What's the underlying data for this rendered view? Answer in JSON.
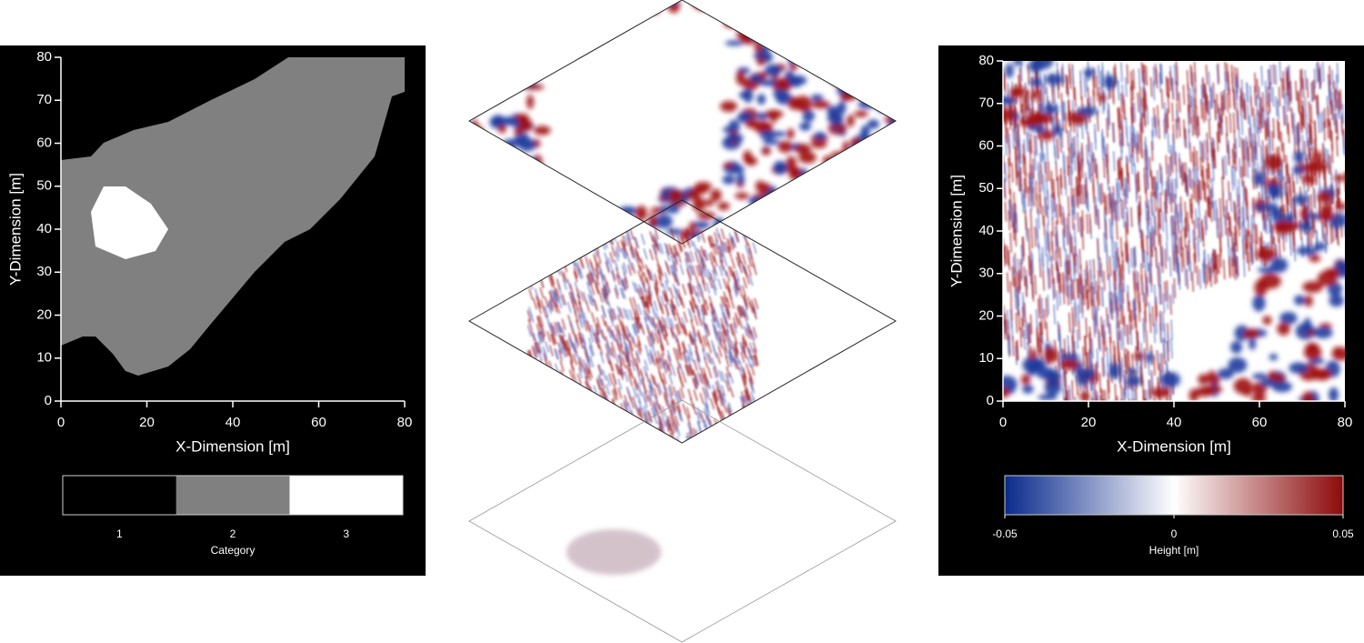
{
  "chart_data": [
    {
      "type": "category-map",
      "xlabel": "X-Dimension [m]",
      "ylabel": "Y-Dimension [m]",
      "xlim": [
        0,
        80
      ],
      "ylim": [
        0,
        80
      ],
      "xticks": [
        0,
        20,
        40,
        60,
        80
      ],
      "yticks": [
        0,
        10,
        20,
        30,
        40,
        50,
        60,
        70,
        80
      ],
      "colorbar": {
        "label": "Category",
        "ticks": [
          1,
          2,
          3
        ],
        "colors": [
          "#000000",
          "#808080",
          "#ffffff"
        ]
      }
    },
    {
      "type": "height-map",
      "xlabel": "X-Dimension [m]",
      "ylabel": "Y-Dimension [m]",
      "xlim": [
        0,
        80
      ],
      "ylim": [
        0,
        80
      ],
      "xticks": [
        0,
        20,
        40,
        60,
        80
      ],
      "yticks": [
        0,
        10,
        20,
        30,
        40,
        50,
        60,
        70,
        80
      ],
      "colorbar": {
        "label": "Height [m]",
        "lim": [
          -0.05,
          0.05
        ],
        "ticks": [
          -0.05,
          0,
          0.05
        ],
        "colors": [
          "#0a2a8c",
          "#ffffff",
          "#8c0a0a"
        ]
      }
    }
  ]
}
